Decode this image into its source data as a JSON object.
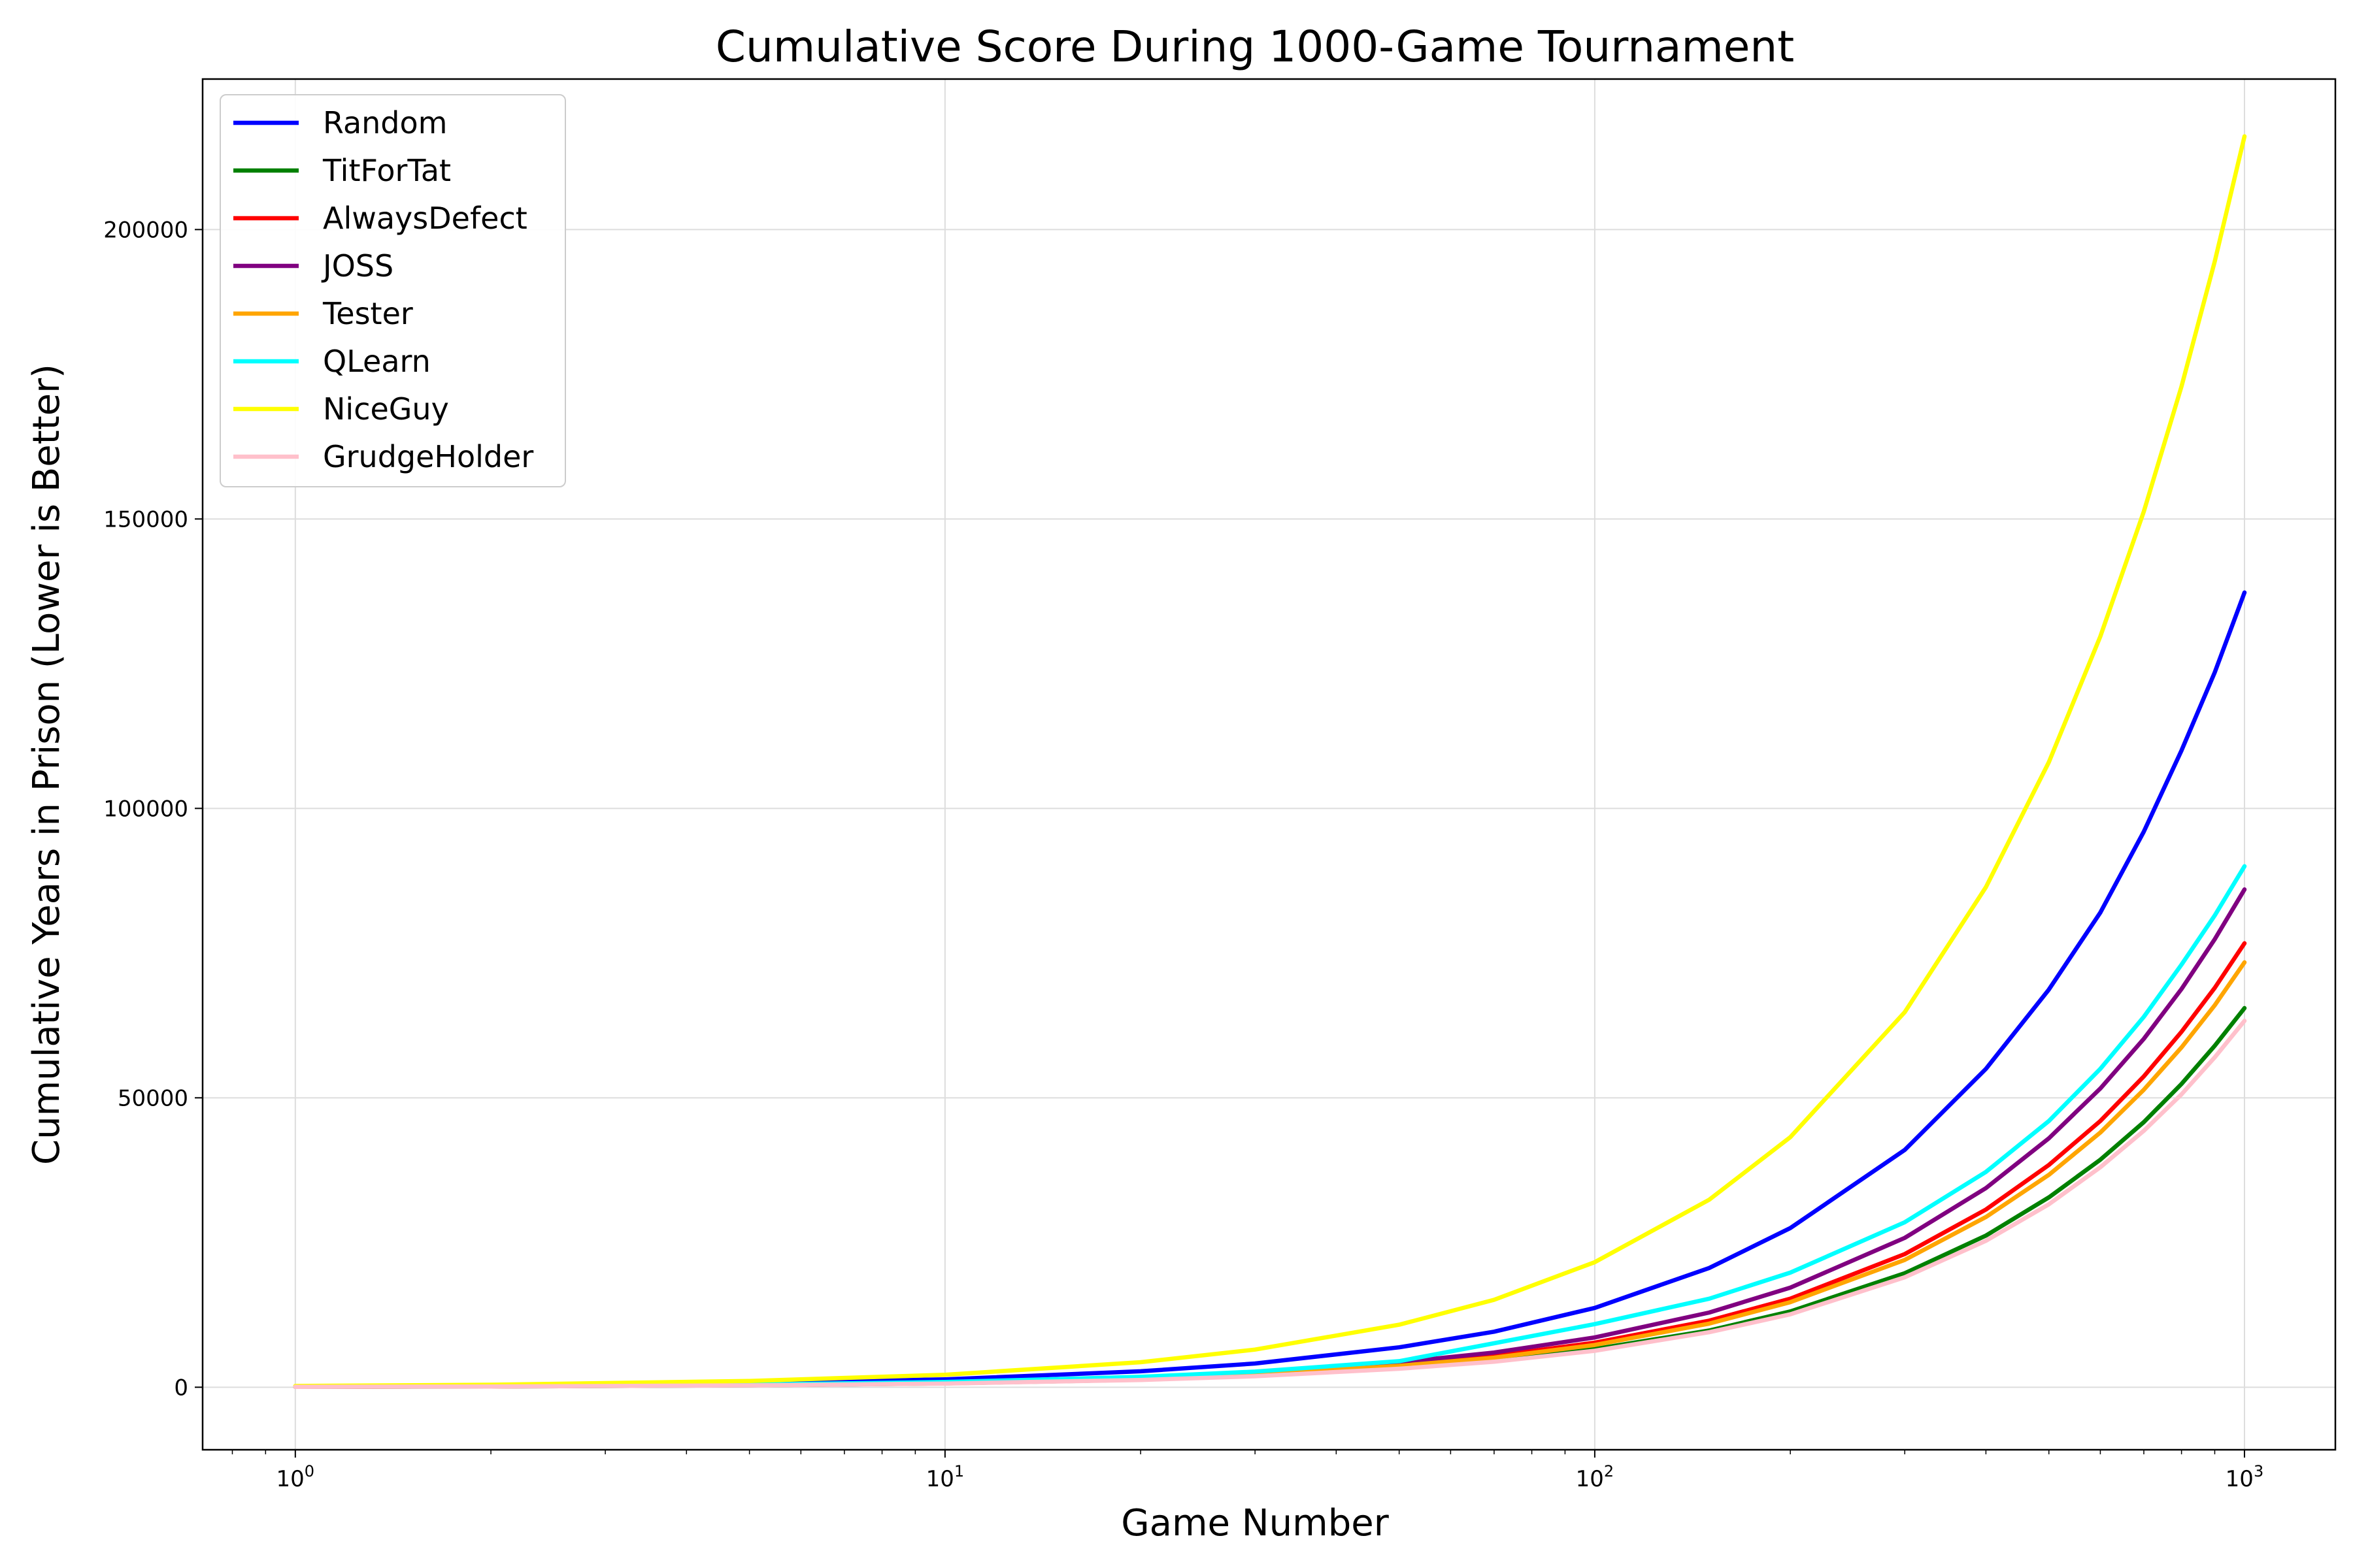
{
  "chart_data": {
    "type": "line",
    "title": "Cumulative Score During 1000-Game Tournament",
    "xlabel": "Game Number",
    "ylabel": "Cumulative Years in Prison (Lower is Better)",
    "x_scale": "log",
    "xlim": [
      0.72,
      1380
    ],
    "ylim": [
      -10800,
      226000
    ],
    "x_ticks": [
      1,
      10,
      100,
      1000
    ],
    "x_tick_labels": [
      {
        "base": "10",
        "exp": "0"
      },
      {
        "base": "10",
        "exp": "1"
      },
      {
        "base": "10",
        "exp": "2"
      },
      {
        "base": "10",
        "exp": "3"
      }
    ],
    "y_ticks": [
      0,
      50000,
      100000,
      150000,
      200000
    ],
    "y_tick_labels": [
      "0",
      "50000",
      "100000",
      "150000",
      "200000"
    ],
    "grid": true,
    "legend_position": "upper left",
    "x": [
      1,
      2,
      5,
      10,
      20,
      30,
      50,
      70,
      100,
      150,
      200,
      300,
      400,
      500,
      600,
      700,
      800,
      900,
      1000
    ],
    "series": [
      {
        "name": "Random",
        "color": "#0000ff",
        "values": [
          150,
          280,
          700,
          1370,
          2750,
          4100,
          6900,
          9600,
          13700,
          20600,
          27500,
          41000,
          55000,
          68700,
          82000,
          96000,
          110000,
          123500,
          137300
        ]
      },
      {
        "name": "TitForTat",
        "color": "#008000",
        "values": [
          70,
          130,
          330,
          660,
          1300,
          2000,
          3300,
          4600,
          6600,
          9800,
          13100,
          19700,
          26200,
          32800,
          39300,
          45800,
          52400,
          59000,
          65500
        ]
      },
      {
        "name": "AlwaysDefect",
        "color": "#ff0000",
        "values": [
          80,
          150,
          380,
          770,
          1530,
          2300,
          3800,
          5400,
          7700,
          11500,
          15300,
          23000,
          30700,
          38400,
          46000,
          53700,
          61400,
          69000,
          76700
        ]
      },
      {
        "name": "JOSS",
        "color": "#800080",
        "values": [
          85,
          170,
          430,
          860,
          1720,
          2580,
          4300,
          6000,
          8600,
          12900,
          17200,
          25800,
          34400,
          43000,
          51600,
          60200,
          68800,
          77400,
          86000
        ]
      },
      {
        "name": "Tester",
        "color": "#ffa500",
        "values": [
          75,
          150,
          370,
          730,
          1470,
          2200,
          3700,
          5100,
          7300,
          11000,
          14700,
          22000,
          29400,
          36700,
          44000,
          51400,
          58700,
          66000,
          73400
        ]
      },
      {
        "name": "QLearn",
        "color": "#00ffff",
        "values": [
          90,
          180,
          450,
          900,
          1800,
          2700,
          4500,
          7600,
          10900,
          15300,
          19800,
          28500,
          37200,
          46000,
          55000,
          64000,
          73000,
          81500,
          90000
        ]
      },
      {
        "name": "NiceGuy",
        "color": "#ffff00",
        "values": [
          215,
          430,
          1080,
          2160,
          4320,
          6500,
          10800,
          15100,
          21600,
          32400,
          43200,
          64800,
          86400,
          108000,
          129700,
          151300,
          172900,
          194500,
          216100
        ]
      },
      {
        "name": "GrudgeHolder",
        "color": "#ffc0cb",
        "values": [
          60,
          125,
          320,
          630,
          1260,
          1900,
          3200,
          4400,
          6300,
          9500,
          12600,
          19000,
          25300,
          31600,
          38000,
          44300,
          50600,
          57000,
          63300
        ]
      }
    ]
  }
}
